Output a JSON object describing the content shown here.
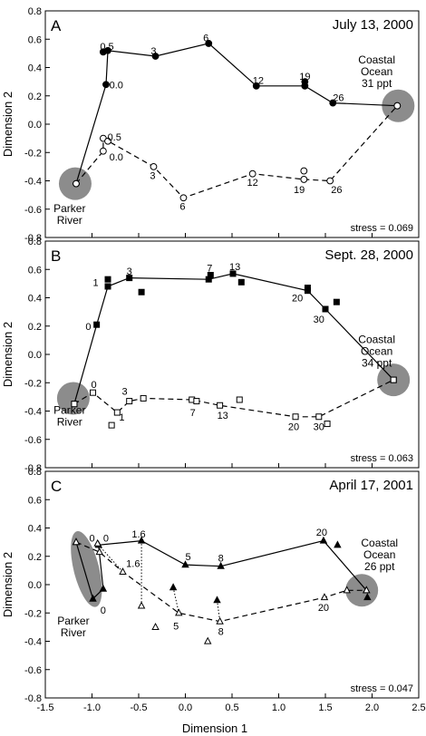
{
  "figure": {
    "xlabel": "Dimension 1",
    "ylabel": "Dimension 2",
    "xticks": [
      "-1.5",
      "-1.0",
      "-0.5",
      "0.0",
      "0.5",
      "1.0",
      "1.5",
      "2.0",
      "2.5"
    ],
    "yticks": [
      "-0.8",
      "-0.6",
      "-0.4",
      "-0.2",
      "0.0",
      "0.2",
      "0.4",
      "0.6",
      "0.8"
    ]
  },
  "chart_data": [
    {
      "type": "scatter",
      "panel": "A",
      "title": "July 13, 2000",
      "stress": "stress = 0.069",
      "xlim": [
        -1.5,
        2.5
      ],
      "ylim": [
        -0.8,
        0.8
      ],
      "grid": false,
      "endpoints": [
        {
          "label": [
            "Parker",
            "River"
          ],
          "x": -1.18,
          "y": -0.42
        },
        {
          "label": [
            "Coastal",
            "Ocean",
            "31 ppt"
          ],
          "x": 2.28,
          "y": 0.13
        }
      ],
      "series": [
        {
          "marker": "filled-circle",
          "line": "solid",
          "points": [
            [
              -1.17,
              -0.42
            ],
            [
              -0.85,
              0.28
            ],
            [
              -0.88,
              0.51
            ],
            [
              -0.83,
              0.52
            ],
            [
              -0.32,
              0.48
            ],
            [
              0.25,
              0.57
            ],
            [
              0.76,
              0.27
            ],
            [
              1.28,
              0.3
            ],
            [
              1.28,
              0.27
            ],
            [
              1.58,
              0.15
            ],
            [
              2.27,
              0.13
            ]
          ],
          "path_order": [
            0,
            1,
            3,
            4,
            5,
            6,
            8,
            9,
            10
          ]
        },
        {
          "marker": "open-circle",
          "line": "dashed",
          "points": [
            [
              -1.17,
              -0.42
            ],
            [
              -0.88,
              -0.19
            ],
            [
              -0.88,
              -0.1
            ],
            [
              -0.83,
              -0.12
            ],
            [
              -0.34,
              -0.3
            ],
            [
              -0.02,
              -0.52
            ],
            [
              0.72,
              -0.35
            ],
            [
              1.27,
              -0.33
            ],
            [
              1.27,
              -0.39
            ],
            [
              1.55,
              -0.4
            ],
            [
              2.27,
              0.13
            ]
          ],
          "path_order": [
            0,
            1,
            2,
            4,
            5,
            6,
            8,
            9,
            10
          ]
        }
      ],
      "labels": [
        {
          "text": "0.5",
          "x": -0.84,
          "y": 0.55
        },
        {
          "text": "0.0",
          "x": -0.74,
          "y": 0.28
        },
        {
          "text": "3",
          "x": -0.34,
          "y": 0.52
        },
        {
          "text": "6",
          "x": 0.22,
          "y": 0.61
        },
        {
          "text": "12",
          "x": 0.78,
          "y": 0.31
        },
        {
          "text": "19",
          "x": 1.28,
          "y": 0.34
        },
        {
          "text": "26",
          "x": 1.64,
          "y": 0.19
        },
        {
          "text": "0.5",
          "x": -0.76,
          "y": -0.09
        },
        {
          "text": "0.0",
          "x": -0.74,
          "y": -0.23
        },
        {
          "text": "3",
          "x": -0.35,
          "y": -0.36
        },
        {
          "text": "6",
          "x": -0.03,
          "y": -0.58
        },
        {
          "text": "12",
          "x": 0.72,
          "y": -0.41
        },
        {
          "text": "19",
          "x": 1.22,
          "y": -0.46
        },
        {
          "text": "26",
          "x": 1.62,
          "y": -0.46
        }
      ]
    },
    {
      "type": "scatter",
      "panel": "B",
      "title": "Sept. 28, 2000",
      "stress": "stress = 0.063",
      "xlim": [
        -1.5,
        2.5
      ],
      "ylim": [
        -0.8,
        0.8
      ],
      "grid": false,
      "endpoints": [
        {
          "label": [
            "Parker",
            "River"
          ],
          "x": -1.2,
          "y": -0.31
        },
        {
          "label": [
            "Coastal",
            "Ocean",
            "34 ppt"
          ],
          "x": 2.23,
          "y": -0.18
        }
      ],
      "series": [
        {
          "marker": "filled-square",
          "line": "solid",
          "points": [
            [
              -1.19,
              -0.35
            ],
            [
              -0.95,
              0.21
            ],
            [
              -0.83,
              0.48
            ],
            [
              -0.83,
              0.53
            ],
            [
              -0.6,
              0.54
            ],
            [
              -0.47,
              0.44
            ],
            [
              0.25,
              0.53
            ],
            [
              0.27,
              0.56
            ],
            [
              0.51,
              0.57
            ],
            [
              0.6,
              0.51
            ],
            [
              1.31,
              0.45
            ],
            [
              1.31,
              0.47
            ],
            [
              1.5,
              0.32
            ],
            [
              1.62,
              0.37
            ],
            [
              2.23,
              -0.18
            ]
          ],
          "path_order": [
            0,
            1,
            2,
            4,
            6,
            8,
            10,
            12,
            14
          ]
        },
        {
          "marker": "open-square",
          "line": "dashed",
          "points": [
            [
              -1.19,
              -0.35
            ],
            [
              -0.99,
              -0.27
            ],
            [
              -0.79,
              -0.5
            ],
            [
              -0.73,
              -0.41
            ],
            [
              -0.6,
              -0.33
            ],
            [
              -0.45,
              -0.31
            ],
            [
              0.07,
              -0.32
            ],
            [
              0.12,
              -0.33
            ],
            [
              0.37,
              -0.36
            ],
            [
              0.58,
              -0.32
            ],
            [
              1.18,
              -0.44
            ],
            [
              1.43,
              -0.44
            ],
            [
              1.52,
              -0.49
            ],
            [
              2.23,
              -0.18
            ]
          ],
          "path_order": [
            0,
            1,
            3,
            4,
            5,
            6,
            8,
            10,
            11,
            13
          ]
        }
      ],
      "labels": [
        {
          "text": "1",
          "x": -0.96,
          "y": 0.51
        },
        {
          "text": "3",
          "x": -0.6,
          "y": 0.59
        },
        {
          "text": "7",
          "x": 0.26,
          "y": 0.61
        },
        {
          "text": "13",
          "x": 0.53,
          "y": 0.62
        },
        {
          "text": "20",
          "x": 1.2,
          "y": 0.4
        },
        {
          "text": "30",
          "x": 1.43,
          "y": 0.25
        },
        {
          "text": "0",
          "x": -1.04,
          "y": 0.2
        },
        {
          "text": "0",
          "x": -0.98,
          "y": -0.21
        },
        {
          "text": "3",
          "x": -0.65,
          "y": -0.26
        },
        {
          "text": "1",
          "x": -0.68,
          "y": -0.44
        },
        {
          "text": "7",
          "x": 0.08,
          "y": -0.41
        },
        {
          "text": "13",
          "x": 0.4,
          "y": -0.43
        },
        {
          "text": "20",
          "x": 1.16,
          "y": -0.51
        },
        {
          "text": "30",
          "x": 1.43,
          "y": -0.51
        }
      ]
    },
    {
      "type": "scatter",
      "panel": "C",
      "title": "April 17, 2001",
      "stress": "stress = 0.047",
      "xlim": [
        -1.5,
        2.5
      ],
      "ylim": [
        -0.8,
        0.8
      ],
      "grid": false,
      "endpoints": [
        {
          "label": [
            "Parker",
            "River"
          ],
          "x": -1.06,
          "y": -0.02
        },
        {
          "label": [
            "Coastal",
            "Ocean",
            "26 ppt"
          ],
          "x": 1.89,
          "y": -0.04
        }
      ],
      "series": [
        {
          "marker": "filled-triangle",
          "line": "solid",
          "points": [
            [
              -1.17,
              0.3
            ],
            [
              -0.99,
              -0.1
            ],
            [
              -0.88,
              -0.03
            ],
            [
              -0.93,
              0.28
            ],
            [
              -0.47,
              0.31
            ],
            [
              -0.13,
              -0.02
            ],
            [
              0.0,
              0.14
            ],
            [
              0.34,
              -0.11
            ],
            [
              0.38,
              0.13
            ],
            [
              1.48,
              0.31
            ],
            [
              1.63,
              0.28
            ],
            [
              1.94,
              -0.04
            ],
            [
              1.95,
              -0.09
            ]
          ],
          "path_order": [
            0,
            1,
            2,
            3,
            4,
            6,
            8,
            9,
            11
          ]
        },
        {
          "marker": "open-triangle",
          "line": "dashed",
          "points": [
            [
              -1.17,
              0.3
            ],
            [
              -0.94,
              0.29
            ],
            [
              -0.92,
              0.23
            ],
            [
              -0.67,
              0.09
            ],
            [
              -0.47,
              -0.15
            ],
            [
              -0.32,
              -0.3
            ],
            [
              -0.07,
              -0.2
            ],
            [
              0.24,
              -0.4
            ],
            [
              0.37,
              -0.26
            ],
            [
              1.49,
              -0.09
            ],
            [
              1.73,
              -0.04
            ],
            [
              1.94,
              -0.04
            ]
          ],
          "path_order": [
            0,
            2,
            3,
            6,
            8,
            9,
            10,
            11
          ]
        }
      ],
      "connectors": [
        [
          3,
          3
        ],
        [
          4,
          4
        ],
        [
          5,
          6
        ],
        [
          7,
          8
        ]
      ],
      "labels": [
        {
          "text": "0",
          "x": -0.85,
          "y": 0.33
        },
        {
          "text": "1.6",
          "x": -0.5,
          "y": 0.36
        },
        {
          "text": "5",
          "x": 0.03,
          "y": 0.2
        },
        {
          "text": "8",
          "x": 0.38,
          "y": 0.19
        },
        {
          "text": "20",
          "x": 1.46,
          "y": 0.37
        },
        {
          "text": "0",
          "x": -1.0,
          "y": 0.33
        },
        {
          "text": "0",
          "x": -0.88,
          "y": -0.18
        },
        {
          "text": "1.6",
          "x": -0.56,
          "y": 0.15
        },
        {
          "text": "5",
          "x": -0.1,
          "y": -0.29
        },
        {
          "text": "8",
          "x": 0.38,
          "y": -0.33
        },
        {
          "text": "20",
          "x": 1.48,
          "y": -0.16
        }
      ]
    }
  ]
}
